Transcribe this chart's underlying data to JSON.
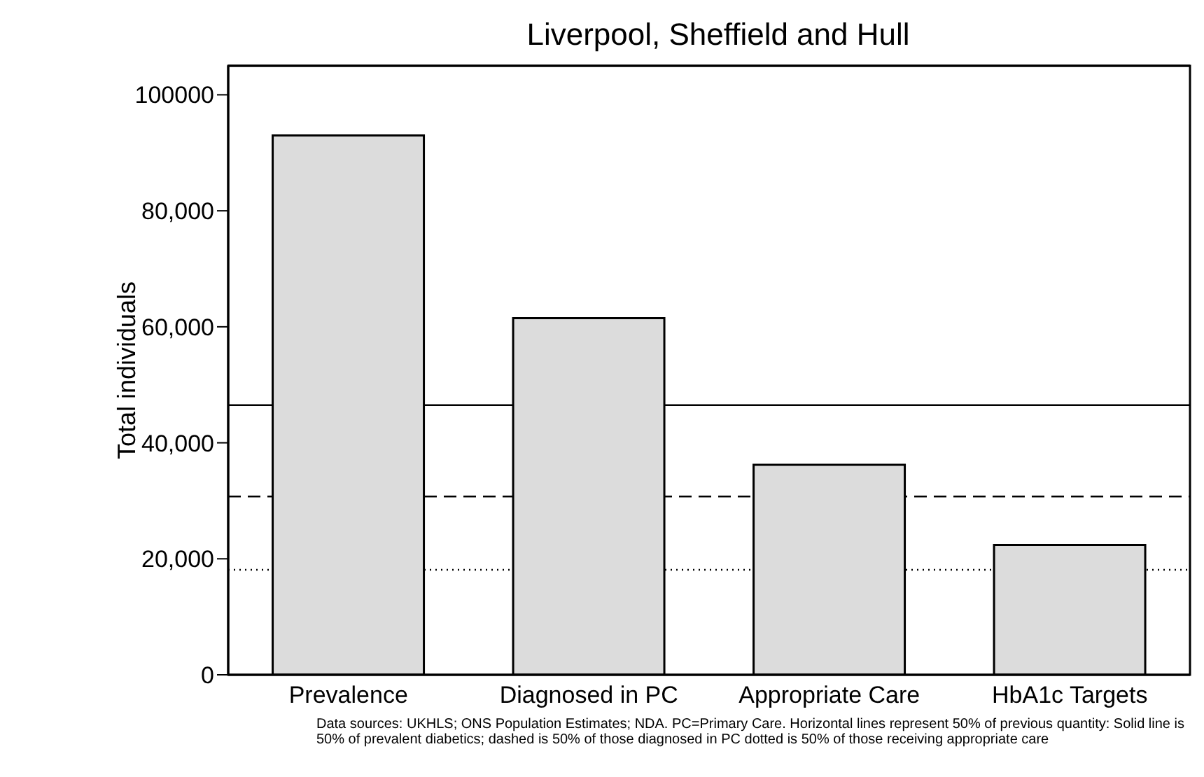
{
  "chart_data": {
    "type": "bar",
    "title": "Liverpool, Sheffield and Hull",
    "ylabel": "Total individuals",
    "categories": [
      "Prevalence",
      "Diagnosed in PC",
      "Appropriate Care",
      "HbA1c Targets"
    ],
    "values": [
      93000,
      61500,
      36200,
      22400
    ],
    "color": "#dcdcdc",
    "ylim": [
      0,
      105000
    ],
    "yticks": [
      0,
      {
        "value": 20000,
        "label": "20,000"
      },
      {
        "value": 40000,
        "label": "40,000"
      },
      {
        "value": 60000,
        "label": "60,000"
      },
      {
        "value": 80000,
        "label": "80,000"
      },
      100000
    ],
    "ref_lines": [
      {
        "axis": "y",
        "value": 46500,
        "color": "#000000",
        "line_style": "solid"
      },
      {
        "axis": "y",
        "value": 30750,
        "color": "#000000",
        "line_style": "dashed"
      },
      {
        "axis": "y",
        "value": 18100,
        "color": "#000000",
        "line_style": "dotted"
      }
    ],
    "grid": false,
    "legend": false,
    "annotations": [
      "Data sources: UKHLS; ONS Population Estimates; NDA. PC=Primary Care. Horizontal lines represent 50% of previous quantity: Solid line is 50% of prevalent diabetics; dashed is 50% of those diagnosed in PC dotted is 50% of those receiving appropriate care"
    ]
  }
}
